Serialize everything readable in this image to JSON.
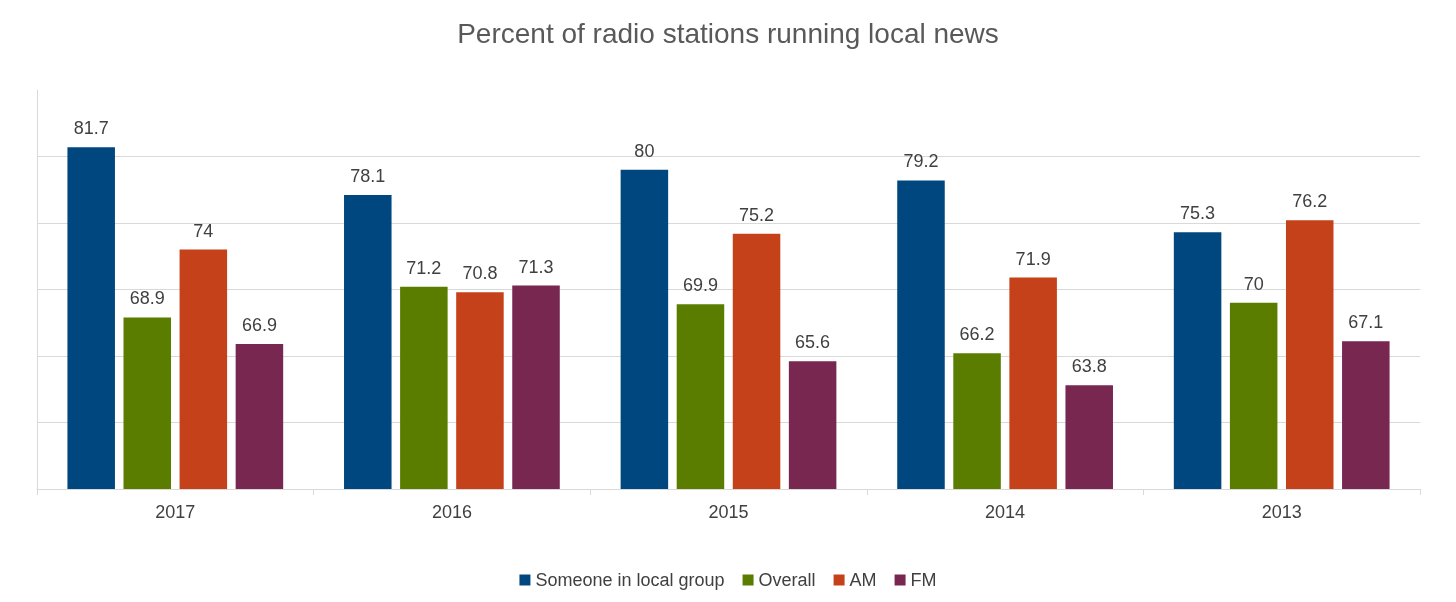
{
  "chart_data": {
    "type": "bar",
    "title": "Percent of radio stations running local news",
    "categories": [
      "2017",
      "2016",
      "2015",
      "2014",
      "2013"
    ],
    "series": [
      {
        "name": "Someone in local group",
        "color": "#00467f",
        "values": [
          81.7,
          78.1,
          80,
          79.2,
          75.3
        ]
      },
      {
        "name": "Overall",
        "color": "#5a7d00",
        "values": [
          68.9,
          71.2,
          69.9,
          66.2,
          70
        ]
      },
      {
        "name": "AM",
        "color": "#c4411a",
        "values": [
          74,
          70.8,
          75.2,
          71.9,
          76.2
        ]
      },
      {
        "name": "FM",
        "color": "#772750",
        "values": [
          66.9,
          71.3,
          65.6,
          63.8,
          67.1
        ]
      }
    ],
    "ylim": [
      56,
      86
    ],
    "yticks": [
      {
        "value": 61,
        "label": null
      },
      {
        "value": 66,
        "label": null
      },
      {
        "value": 71,
        "label": null
      },
      {
        "value": 76,
        "label": null
      },
      {
        "value": 81,
        "label": null
      }
    ],
    "tick_labels": "x",
    "grid": "y",
    "legend": "bottom",
    "data_labels": true
  }
}
